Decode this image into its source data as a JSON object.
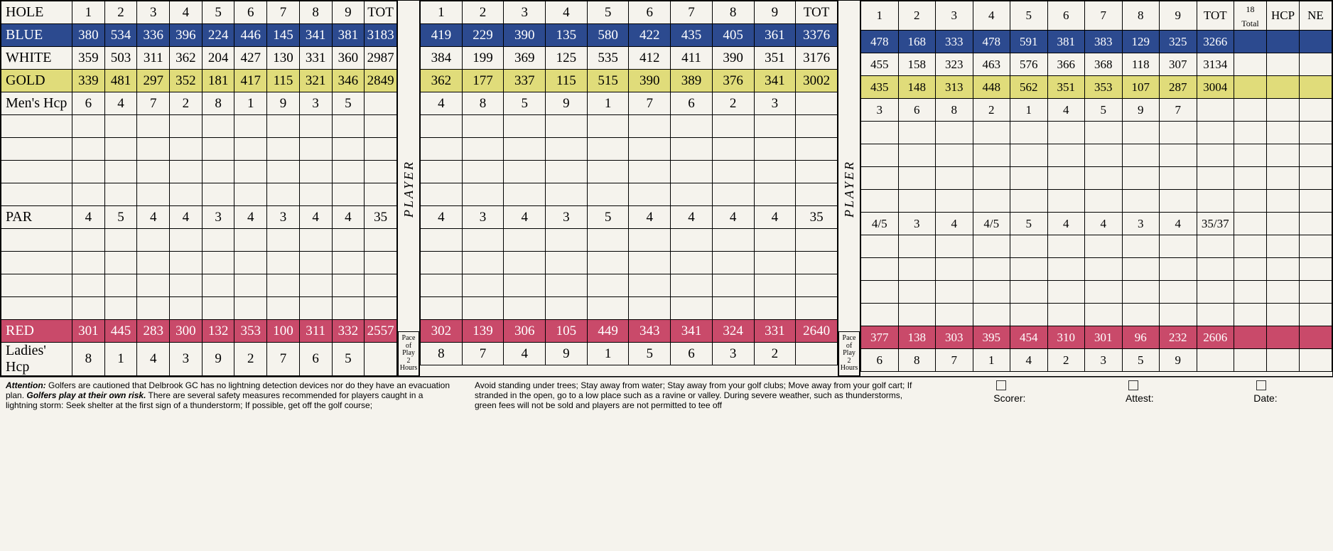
{
  "colors": {
    "blue": "#2c4a8f",
    "gold": "#e0dc7a",
    "red": "#c94a6a",
    "white": "#f5f3ed",
    "text_light": "#ffffff",
    "text_dark": "#000000",
    "border": "#000000"
  },
  "typography": {
    "body_font": "Georgia, Times New Roman, serif",
    "cell_fontsize": 19,
    "label_fontsize": 20,
    "footer_fontsize": 12
  },
  "playerLabel": "PLAYER",
  "paceLabel": "Pace of Play 2 Hours",
  "nines": [
    {
      "name": "front",
      "cols": {
        "label_width": 100,
        "hole_cols": 9,
        "tot": true,
        "extra": []
      },
      "rows": [
        {
          "type": "hole",
          "label": "HOLE",
          "cells": [
            "1",
            "2",
            "3",
            "4",
            "5",
            "6",
            "7",
            "8",
            "9",
            "TOT"
          ]
        },
        {
          "type": "blue",
          "label": "BLUE",
          "cells": [
            "380",
            "534",
            "336",
            "396",
            "224",
            "446",
            "145",
            "341",
            "381",
            "3183"
          ]
        },
        {
          "type": "white",
          "label": "WHITE",
          "cells": [
            "359",
            "503",
            "311",
            "362",
            "204",
            "427",
            "130",
            "331",
            "360",
            "2987"
          ]
        },
        {
          "type": "gold",
          "label": "GOLD",
          "cells": [
            "339",
            "481",
            "297",
            "352",
            "181",
            "417",
            "115",
            "321",
            "346",
            "2849"
          ]
        },
        {
          "type": "default",
          "label": "Men's Hcp",
          "cells": [
            "6",
            "4",
            "7",
            "2",
            "8",
            "1",
            "9",
            "3",
            "5",
            ""
          ]
        },
        {
          "type": "blank",
          "label": "",
          "cells": [
            "",
            "",
            "",
            "",
            "",
            "",
            "",
            "",
            "",
            ""
          ]
        },
        {
          "type": "blank",
          "label": "",
          "cells": [
            "",
            "",
            "",
            "",
            "",
            "",
            "",
            "",
            "",
            ""
          ]
        },
        {
          "type": "blank",
          "label": "",
          "cells": [
            "",
            "",
            "",
            "",
            "",
            "",
            "",
            "",
            "",
            ""
          ]
        },
        {
          "type": "blank",
          "label": "",
          "cells": [
            "",
            "",
            "",
            "",
            "",
            "",
            "",
            "",
            "",
            ""
          ]
        },
        {
          "type": "default",
          "label": "PAR",
          "cells": [
            "4",
            "5",
            "4",
            "4",
            "3",
            "4",
            "3",
            "4",
            "4",
            "35"
          ]
        },
        {
          "type": "blank",
          "label": "",
          "cells": [
            "",
            "",
            "",
            "",
            "",
            "",
            "",
            "",
            "",
            ""
          ]
        },
        {
          "type": "blank",
          "label": "",
          "cells": [
            "",
            "",
            "",
            "",
            "",
            "",
            "",
            "",
            "",
            ""
          ]
        },
        {
          "type": "blank",
          "label": "",
          "cells": [
            "",
            "",
            "",
            "",
            "",
            "",
            "",
            "",
            "",
            ""
          ]
        },
        {
          "type": "blank",
          "label": "",
          "cells": [
            "",
            "",
            "",
            "",
            "",
            "",
            "",
            "",
            "",
            ""
          ]
        },
        {
          "type": "red",
          "label": "RED",
          "cells": [
            "301",
            "445",
            "283",
            "300",
            "132",
            "353",
            "100",
            "311",
            "332",
            "2557"
          ]
        },
        {
          "type": "default",
          "label": "Ladies' Hcp",
          "cells": [
            "8",
            "1",
            "4",
            "3",
            "9",
            "2",
            "7",
            "6",
            "5",
            ""
          ]
        }
      ]
    },
    {
      "name": "middle",
      "cols": {
        "label_width": 50,
        "hole_cols": 9,
        "tot": true,
        "extra": []
      },
      "rows": [
        {
          "type": "hole",
          "label": "",
          "cells": [
            "1",
            "2",
            "3",
            "4",
            "5",
            "6",
            "7",
            "8",
            "9",
            "TOT"
          ]
        },
        {
          "type": "blue",
          "label": "",
          "cells": [
            "419",
            "229",
            "390",
            "135",
            "580",
            "422",
            "435",
            "405",
            "361",
            "3376"
          ]
        },
        {
          "type": "white",
          "label": "",
          "cells": [
            "384",
            "199",
            "369",
            "125",
            "535",
            "412",
            "411",
            "390",
            "351",
            "3176"
          ]
        },
        {
          "type": "gold",
          "label": "",
          "cells": [
            "362",
            "177",
            "337",
            "115",
            "515",
            "390",
            "389",
            "376",
            "341",
            "3002"
          ]
        },
        {
          "type": "default",
          "label": "",
          "cells": [
            "4",
            "8",
            "5",
            "9",
            "1",
            "7",
            "6",
            "2",
            "3",
            ""
          ]
        },
        {
          "type": "blank",
          "label": "",
          "cells": [
            "",
            "",
            "",
            "",
            "",
            "",
            "",
            "",
            "",
            ""
          ]
        },
        {
          "type": "blank",
          "label": "",
          "cells": [
            "",
            "",
            "",
            "",
            "",
            "",
            "",
            "",
            "",
            ""
          ]
        },
        {
          "type": "blank",
          "label": "",
          "cells": [
            "",
            "",
            "",
            "",
            "",
            "",
            "",
            "",
            "",
            ""
          ]
        },
        {
          "type": "blank",
          "label": "",
          "cells": [
            "",
            "",
            "",
            "",
            "",
            "",
            "",
            "",
            "",
            ""
          ]
        },
        {
          "type": "default",
          "label": "",
          "cells": [
            "4",
            "3",
            "4",
            "3",
            "5",
            "4",
            "4",
            "4",
            "4",
            "35"
          ]
        },
        {
          "type": "blank",
          "label": "",
          "cells": [
            "",
            "",
            "",
            "",
            "",
            "",
            "",
            "",
            "",
            ""
          ]
        },
        {
          "type": "blank",
          "label": "",
          "cells": [
            "",
            "",
            "",
            "",
            "",
            "",
            "",
            "",
            "",
            ""
          ]
        },
        {
          "type": "blank",
          "label": "",
          "cells": [
            "",
            "",
            "",
            "",
            "",
            "",
            "",
            "",
            "",
            ""
          ]
        },
        {
          "type": "blank",
          "label": "",
          "cells": [
            "",
            "",
            "",
            "",
            "",
            "",
            "",
            "",
            "",
            ""
          ]
        },
        {
          "type": "red",
          "label": "",
          "cells": [
            "302",
            "139",
            "306",
            "105",
            "449",
            "343",
            "341",
            "324",
            "331",
            "2640"
          ]
        },
        {
          "type": "default",
          "label": "",
          "cells": [
            "8",
            "7",
            "4",
            "9",
            "1",
            "5",
            "6",
            "3",
            "2",
            ""
          ]
        }
      ]
    },
    {
      "name": "back",
      "cols": {
        "label_width": 0,
        "hole_cols": 9,
        "tot": true,
        "extra": [
          "18 Total",
          "HCP",
          "NE"
        ]
      },
      "rows": [
        {
          "type": "hole",
          "label": "",
          "cells": [
            "1",
            "2",
            "3",
            "4",
            "5",
            "6",
            "7",
            "8",
            "9",
            "TOT",
            "18 Total",
            "HCP",
            "NE"
          ]
        },
        {
          "type": "blue",
          "label": "",
          "cells": [
            "478",
            "168",
            "333",
            "478",
            "591",
            "381",
            "383",
            "129",
            "325",
            "3266",
            "",
            "",
            ""
          ]
        },
        {
          "type": "white",
          "label": "",
          "cells": [
            "455",
            "158",
            "323",
            "463",
            "576",
            "366",
            "368",
            "118",
            "307",
            "3134",
            "",
            "",
            ""
          ]
        },
        {
          "type": "gold",
          "label": "",
          "cells": [
            "435",
            "148",
            "313",
            "448",
            "562",
            "351",
            "353",
            "107",
            "287",
            "3004",
            "",
            "",
            ""
          ]
        },
        {
          "type": "default",
          "label": "",
          "cells": [
            "3",
            "6",
            "8",
            "2",
            "1",
            "4",
            "5",
            "9",
            "7",
            "",
            "",
            "",
            ""
          ]
        },
        {
          "type": "blank",
          "label": "",
          "cells": [
            "",
            "",
            "",
            "",
            "",
            "",
            "",
            "",
            "",
            "",
            "",
            "",
            ""
          ]
        },
        {
          "type": "blank",
          "label": "",
          "cells": [
            "",
            "",
            "",
            "",
            "",
            "",
            "",
            "",
            "",
            "",
            "",
            "",
            ""
          ]
        },
        {
          "type": "blank",
          "label": "",
          "cells": [
            "",
            "",
            "",
            "",
            "",
            "",
            "",
            "",
            "",
            "",
            "",
            "",
            ""
          ]
        },
        {
          "type": "blank",
          "label": "",
          "cells": [
            "",
            "",
            "",
            "",
            "",
            "",
            "",
            "",
            "",
            "",
            "",
            "",
            ""
          ]
        },
        {
          "type": "default",
          "label": "",
          "cells": [
            "4/5",
            "3",
            "4",
            "4/5",
            "5",
            "4",
            "4",
            "3",
            "4",
            "35/37",
            "",
            "",
            ""
          ]
        },
        {
          "type": "blank",
          "label": "",
          "cells": [
            "",
            "",
            "",
            "",
            "",
            "",
            "",
            "",
            "",
            "",
            "",
            "",
            ""
          ]
        },
        {
          "type": "blank",
          "label": "",
          "cells": [
            "",
            "",
            "",
            "",
            "",
            "",
            "",
            "",
            "",
            "",
            "",
            "",
            ""
          ]
        },
        {
          "type": "blank",
          "label": "",
          "cells": [
            "",
            "",
            "",
            "",
            "",
            "",
            "",
            "",
            "",
            "",
            "",
            "",
            ""
          ]
        },
        {
          "type": "blank",
          "label": "",
          "cells": [
            "",
            "",
            "",
            "",
            "",
            "",
            "",
            "",
            "",
            "",
            "",
            "",
            ""
          ]
        },
        {
          "type": "red",
          "label": "",
          "cells": [
            "377",
            "138",
            "303",
            "395",
            "454",
            "310",
            "301",
            "96",
            "232",
            "2606",
            "",
            "",
            ""
          ]
        },
        {
          "type": "default",
          "label": "",
          "cells": [
            "6",
            "8",
            "7",
            "1",
            "4",
            "2",
            "3",
            "5",
            "9",
            "",
            "",
            "",
            ""
          ]
        }
      ]
    }
  ],
  "footer": {
    "attention_bold": "Attention:",
    "attention_text": " Golfers are cautioned that Delbrook GC has no lightning detection devices nor do they have an evacuation plan. ",
    "risk_bold": "Golfers play at their own risk.",
    "risk_text": " There are several safety measures recommended for players caught in a lightning storm:  Seek shelter at the first sign of a thunderstorm;  If possible, get off the golf course;",
    "col2_text": "Avoid standing under trees;  Stay away from water;  Stay away from your golf clubs;  Move away from your golf cart; If stranded in the open, go to a low place such as a ravine or valley.\nDuring severe weather, such as thunderstorms, green fees will not be sold and players are not permitted to tee off",
    "sig_scorer": "Scorer:",
    "sig_attest": "Attest:",
    "sig_date": "Date:"
  }
}
